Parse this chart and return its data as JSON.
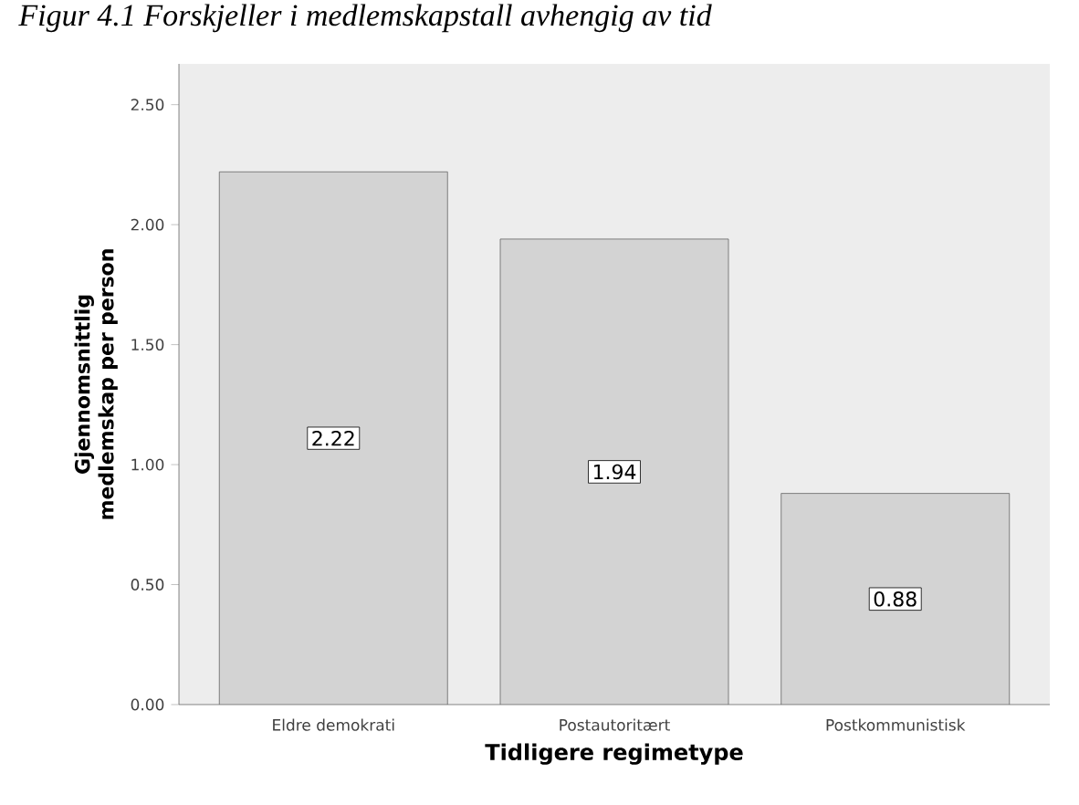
{
  "chart_data": {
    "type": "bar",
    "title": "Figur 4.1 Forskjeller i medlemskapstall avhengig av tid",
    "xlabel": "Tidligere regimetype",
    "ylabel": "Gjennomsnittlig medlemskap per person",
    "categories": [
      "Eldre demokrati",
      "Postautoritært",
      "Postkommunistisk"
    ],
    "values": [
      2.22,
      1.94,
      0.88
    ],
    "value_labels": [
      "2.22",
      "1.94",
      "0.88"
    ],
    "color": "#d3d3d3",
    "ylim": [
      0,
      2.67
    ],
    "yticks": [
      {
        "value": 0,
        "label": "0.00"
      },
      {
        "value": 0.5,
        "label": "0.50"
      },
      {
        "value": 1,
        "label": "1.00"
      },
      {
        "value": 1.5,
        "label": "1.50"
      },
      {
        "value": 2,
        "label": "2.00"
      },
      {
        "value": 2.5,
        "label": "2.50"
      }
    ],
    "grid": false
  }
}
